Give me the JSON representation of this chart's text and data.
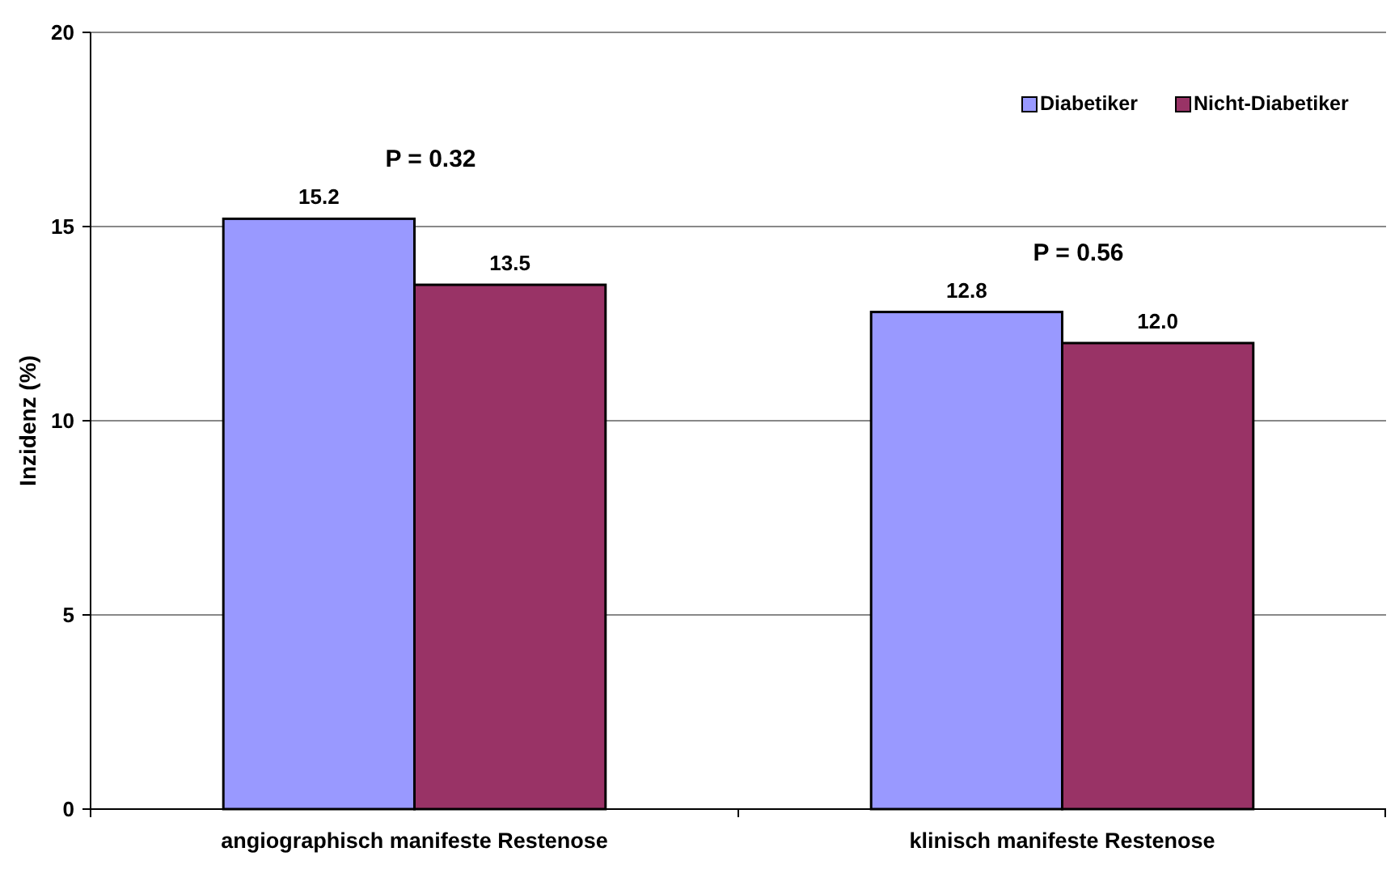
{
  "chart_data": {
    "type": "bar",
    "ylabel": "Inzidenz (%)",
    "categories": [
      "angiographisch manifeste Restenose",
      "klinisch manifeste Restenose"
    ],
    "series": [
      {
        "name": "Diabetiker",
        "color": "#9999ff",
        "values": [
          15.2,
          12.8
        ],
        "value_labels": [
          "15.2",
          "12.8"
        ]
      },
      {
        "name": "Nicht-Diabetiker",
        "color": "#993366",
        "values": [
          13.5,
          12.0
        ],
        "value_labels": [
          "13.5",
          "12.0"
        ]
      }
    ],
    "ylim": [
      0,
      20
    ],
    "yticks": [
      0,
      5,
      10,
      15,
      20
    ],
    "grid": "y",
    "legend": "top right",
    "annotations": [
      "P = 0.32",
      "P = 0.56"
    ]
  }
}
